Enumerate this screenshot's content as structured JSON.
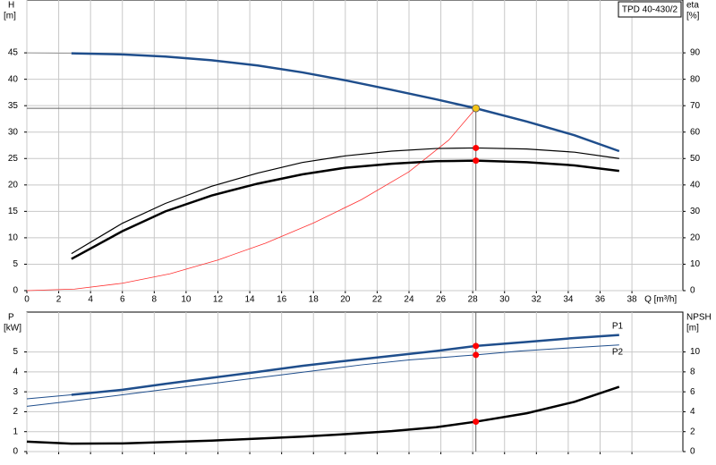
{
  "chart_data": [
    {
      "type": "line",
      "tag": "TPD 40-430/2",
      "y_label": "H",
      "y_unit": "[m]",
      "y2_label": "eta",
      "y2_unit": "[%]",
      "x_label": "Q [m³/h]",
      "xlim": [
        0,
        41.2
      ],
      "xticks": [
        0,
        2,
        4,
        6,
        8,
        10,
        12,
        14,
        16,
        18,
        20,
        22,
        24,
        26,
        28,
        30,
        32,
        34,
        36,
        38
      ],
      "xtick_labels": true,
      "ylim": [
        0,
        55
      ],
      "yticks": [
        0,
        5,
        10,
        15,
        20,
        25,
        30,
        35,
        40,
        45
      ],
      "y2lim": [
        0,
        110
      ],
      "y2ticks": [
        0,
        10,
        20,
        30,
        40,
        50,
        60,
        70,
        80,
        90
      ],
      "grid": true,
      "duty_point": {
        "x": 28.2,
        "y": 34.5,
        "color": "#f5c518"
      },
      "series": [
        {
          "color": "#999999",
          "width": 1,
          "x": [
            0,
            2.8
          ],
          "values": [
            45,
            44.9
          ]
        },
        {
          "color": "#1f4e8c",
          "width": 2.5,
          "x": [
            2.8,
            6,
            8.7,
            11.6,
            14.5,
            17.3,
            20,
            22.9,
            25.7,
            28.2,
            31.4,
            34.4,
            37.2
          ],
          "values": [
            44.9,
            44.7,
            44.3,
            43.6,
            42.6,
            41.3,
            39.8,
            38,
            36.2,
            34.5,
            32,
            29.4,
            26.4
          ]
        },
        {
          "color": "#ff3030",
          "width": 0.8,
          "x": [
            0,
            3,
            6,
            9,
            12,
            15,
            18,
            21,
            24,
            26.5,
            28.2
          ],
          "values": [
            0,
            0.3,
            1.4,
            3.2,
            5.8,
            9,
            12.8,
            17.2,
            22.5,
            28.5,
            34.5
          ]
        },
        {
          "color": "#000000",
          "width": 1.2,
          "axis": "y2",
          "x": [
            2.8,
            6,
            8.7,
            11.6,
            14.5,
            17.3,
            20,
            22.9,
            25.7,
            28.2,
            31.4,
            34.4,
            37.2
          ],
          "values": [
            14,
            25.5,
            33,
            39.5,
            44.5,
            48.5,
            51,
            52.8,
            53.8,
            54,
            53.6,
            52.4,
            50
          ],
          "marker": {
            "x": 28.2,
            "y": 54,
            "color": "#ff0000"
          }
        },
        {
          "color": "#000000",
          "width": 2.5,
          "axis": "y2",
          "x": [
            2.8,
            6,
            8.7,
            11.6,
            14.5,
            17.3,
            20,
            22.9,
            25.7,
            28.2,
            31.4,
            34.4,
            37.2
          ],
          "values": [
            12,
            22.5,
            30,
            36,
            40.5,
            44,
            46.5,
            48,
            49,
            49.2,
            48.6,
            47.4,
            45.3
          ],
          "marker": {
            "x": 28.2,
            "y": 49.2,
            "color": "#ff0000"
          }
        }
      ]
    },
    {
      "type": "line",
      "y_label": "P",
      "y_unit": "[kW]",
      "y2_label": "NPSH",
      "y2_unit": "[m]",
      "xlim": [
        0,
        41.2
      ],
      "xticks": [
        0,
        2,
        4,
        6,
        8,
        10,
        12,
        14,
        16,
        18,
        20,
        22,
        24,
        26,
        28,
        30,
        32,
        34,
        36,
        38
      ],
      "xtick_labels": false,
      "ylim": [
        0,
        7
      ],
      "yticks": [
        0,
        1,
        2,
        3,
        4,
        5
      ],
      "y2lim": [
        0,
        14
      ],
      "y2ticks": [
        0,
        2,
        4,
        6,
        8,
        10
      ],
      "grid": true,
      "duty_x": 28.2,
      "series": [
        {
          "color": "#1f4e8c",
          "width": 1,
          "x": [
            0,
            2.8
          ],
          "values": [
            2.65,
            2.85
          ]
        },
        {
          "name": "P1",
          "color": "#1f4e8c",
          "width": 2.5,
          "x": [
            2.8,
            6,
            8.7,
            11.6,
            14.5,
            17.3,
            20,
            22.9,
            25.7,
            28.2,
            31.4,
            34.4,
            37.2
          ],
          "values": [
            2.85,
            3.1,
            3.4,
            3.7,
            4.0,
            4.3,
            4.55,
            4.8,
            5.05,
            5.3,
            5.5,
            5.7,
            5.85
          ],
          "marker": {
            "x": 28.2,
            "y": 5.3,
            "color": "#ff0000"
          }
        },
        {
          "name": "P2",
          "color": "#1f4e8c",
          "width": 1,
          "x": [
            0,
            3,
            6,
            9,
            12,
            15,
            18,
            21,
            24,
            28.2,
            31,
            34,
            37.2
          ],
          "values": [
            2.27,
            2.55,
            2.85,
            3.15,
            3.45,
            3.75,
            4.05,
            4.35,
            4.6,
            4.85,
            5.05,
            5.2,
            5.35
          ],
          "marker": {
            "x": 28.2,
            "y": 4.85,
            "color": "#ff0000"
          }
        },
        {
          "color": "#000000",
          "width": 2.5,
          "axis": "y2",
          "x": [
            0,
            2.8,
            6,
            8.7,
            11.6,
            14.5,
            17.3,
            20,
            22.9,
            25.7,
            28.2,
            31.4,
            34.4,
            37.2
          ],
          "values": [
            1.0,
            0.8,
            0.82,
            0.95,
            1.1,
            1.3,
            1.5,
            1.75,
            2.05,
            2.45,
            3.0,
            3.85,
            5.0,
            6.5
          ],
          "marker": {
            "x": 28.2,
            "y": 3.0,
            "color": "#ff0000"
          }
        }
      ]
    }
  ]
}
